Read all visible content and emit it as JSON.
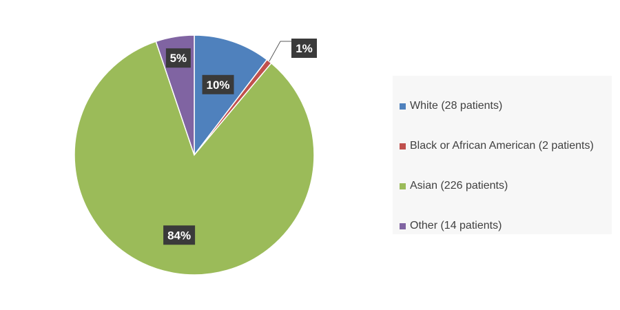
{
  "chart_data": {
    "type": "pie",
    "title": "",
    "legend_position": "right",
    "slices": [
      {
        "label": "White (28 patients)",
        "value": 28,
        "percent_label": "10%",
        "color": "#4f81bd"
      },
      {
        "label": "Black or African American (2 patients)",
        "value": 2,
        "percent_label": "1%",
        "color": "#c0504d"
      },
      {
        "label": "Asian (226 patients)",
        "value": 226,
        "percent_label": "84%",
        "color": "#9bbb59"
      },
      {
        "label": "Other (14 patients)",
        "value": 14,
        "percent_label": "5%",
        "color": "#8064a2"
      }
    ]
  }
}
